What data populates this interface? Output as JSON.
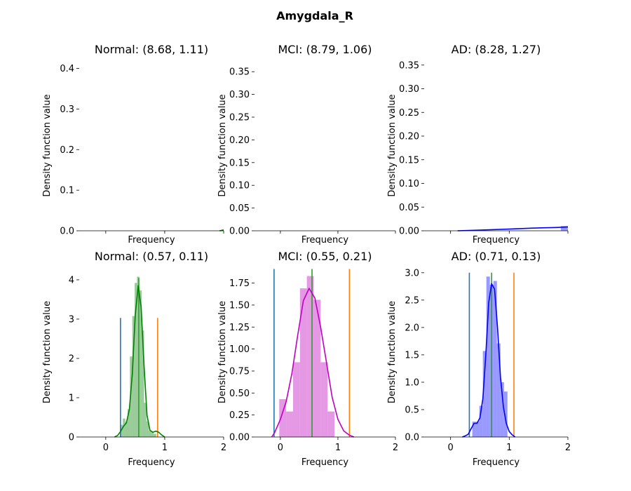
{
  "figure": {
    "title": "Amygdala_R"
  },
  "chart_data": [
    {
      "type": "bar",
      "title": "Normal: (8.68, 1.11)",
      "xlabel": "Frequency",
      "ylabel": "Density function value",
      "xlim": [
        -0.45,
        2.0
      ],
      "ylim": [
        0,
        0.42
      ],
      "xticks": [],
      "yticks": [
        0.0,
        0.1,
        0.2,
        0.3,
        0.4
      ],
      "ytick_labels": [
        "0.0",
        "0.1",
        "0.2",
        "0.3",
        "0.4"
      ],
      "color": "#008000",
      "hist": [
        {
          "x0": 1.96,
          "x1": 2.0,
          "h": 0.003
        }
      ],
      "kde": [
        [
          1.93,
          0.0
        ],
        [
          1.97,
          0.001
        ],
        [
          2.0,
          0.002
        ]
      ],
      "vlines": []
    },
    {
      "type": "bar",
      "title": "MCI: (8.79, 1.06)",
      "xlabel": "Frequency",
      "ylabel": "Density function value",
      "xlim": [
        -0.45,
        2.0
      ],
      "ylim": [
        0,
        0.375
      ],
      "xticks": [],
      "yticks": [
        0.0,
        0.05,
        0.1,
        0.15,
        0.2,
        0.25,
        0.3,
        0.35
      ],
      "ytick_labels": [
        "0.00",
        "0.05",
        "0.10",
        "0.15",
        "0.20",
        "0.25",
        "0.30",
        "0.35"
      ],
      "color": "#bf00bf",
      "hist": [],
      "kde": [],
      "vlines": []
    },
    {
      "type": "bar",
      "title": "AD: (8.28, 1.27)",
      "xlabel": "Frequency",
      "ylabel": "Density function value",
      "xlim": [
        -0.45,
        2.0
      ],
      "ylim": [
        0,
        0.36
      ],
      "xticks": [],
      "yticks": [
        0.0,
        0.05,
        0.1,
        0.15,
        0.2,
        0.25,
        0.3,
        0.35
      ],
      "ytick_labels": [
        "0.00",
        "0.05",
        "0.10",
        "0.15",
        "0.20",
        "0.25",
        "0.30",
        "0.35"
      ],
      "color": "#0000ff",
      "hist": [
        {
          "x0": 1.88,
          "x1": 2.0,
          "h": 0.01
        }
      ],
      "kde": [
        [
          0.12,
          0.0
        ],
        [
          0.5,
          0.0015
        ],
        [
          1.0,
          0.0035
        ],
        [
          1.5,
          0.006
        ],
        [
          1.8,
          0.007
        ],
        [
          2.0,
          0.008
        ]
      ],
      "vlines": []
    },
    {
      "type": "bar",
      "title": "Normal: (0.57, 0.11)",
      "xlabel": "Frequency",
      "ylabel": "Density function value",
      "xlim": [
        -0.45,
        2.0
      ],
      "ylim": [
        0,
        4.32
      ],
      "xticks": [
        0,
        1,
        2
      ],
      "xtick_labels": [
        "0",
        "1",
        "2"
      ],
      "yticks": [
        0,
        1,
        2,
        3,
        4
      ],
      "ytick_labels": [
        "0",
        "1",
        "2",
        "3",
        "4"
      ],
      "color": "#008000",
      "hist": [
        {
          "x0": 0.25,
          "x1": 0.29,
          "h": 0.31
        },
        {
          "x0": 0.29,
          "x1": 0.33,
          "h": 0.47
        },
        {
          "x0": 0.33,
          "x1": 0.37,
          "h": 0.39
        },
        {
          "x0": 0.37,
          "x1": 0.41,
          "h": 0.71
        },
        {
          "x0": 0.41,
          "x1": 0.45,
          "h": 2.05
        },
        {
          "x0": 0.45,
          "x1": 0.49,
          "h": 3.08
        },
        {
          "x0": 0.49,
          "x1": 0.53,
          "h": 3.92
        },
        {
          "x0": 0.53,
          "x1": 0.57,
          "h": 4.08
        },
        {
          "x0": 0.57,
          "x1": 0.61,
          "h": 3.73
        },
        {
          "x0": 0.61,
          "x1": 0.65,
          "h": 2.71
        },
        {
          "x0": 0.65,
          "x1": 0.69,
          "h": 0.87
        },
        {
          "x0": 0.69,
          "x1": 0.73,
          "h": 0.4
        },
        {
          "x0": 0.73,
          "x1": 0.77,
          "h": 0.16
        },
        {
          "x0": 0.77,
          "x1": 0.81,
          "h": 0.12
        },
        {
          "x0": 0.81,
          "x1": 0.86,
          "h": 0.08
        }
      ],
      "kde": [
        [
          0.15,
          0.0
        ],
        [
          0.2,
          0.04
        ],
        [
          0.25,
          0.14
        ],
        [
          0.3,
          0.27
        ],
        [
          0.35,
          0.36
        ],
        [
          0.4,
          0.7
        ],
        [
          0.45,
          1.6
        ],
        [
          0.5,
          3.1
        ],
        [
          0.55,
          3.85
        ],
        [
          0.6,
          3.3
        ],
        [
          0.65,
          1.8
        ],
        [
          0.7,
          0.55
        ],
        [
          0.75,
          0.17
        ],
        [
          0.8,
          0.12
        ],
        [
          0.85,
          0.15
        ],
        [
          0.9,
          0.12
        ],
        [
          0.95,
          0.05
        ],
        [
          1.0,
          0.0
        ]
      ],
      "vlines": [
        {
          "x": 0.25,
          "ymax": 3.03,
          "color": "#1f77b4"
        },
        {
          "x": 0.56,
          "ymax": 4.05,
          "color": "#2ca02c"
        },
        {
          "x": 0.88,
          "ymax": 3.03,
          "color": "#ff7f0e"
        }
      ]
    },
    {
      "type": "bar",
      "title": "MCI: (0.55, 0.21)",
      "xlabel": "Frequency",
      "ylabel": "Density function value",
      "xlim": [
        -0.45,
        2.0
      ],
      "ylim": [
        0,
        1.93
      ],
      "xticks": [
        0,
        1,
        2
      ],
      "xtick_labels": [
        "0",
        "1",
        "2"
      ],
      "yticks": [
        0.0,
        0.25,
        0.5,
        0.75,
        1.0,
        1.25,
        1.5,
        1.75
      ],
      "ytick_labels": [
        "0.00",
        "0.25",
        "0.50",
        "0.75",
        "1.00",
        "1.25",
        "1.50",
        "1.75"
      ],
      "color": "#bf00bf",
      "hist": [
        {
          "x0": -0.02,
          "x1": 0.1,
          "h": 0.43
        },
        {
          "x0": 0.1,
          "x1": 0.22,
          "h": 0.29
        },
        {
          "x0": 0.22,
          "x1": 0.34,
          "h": 0.85
        },
        {
          "x0": 0.34,
          "x1": 0.46,
          "h": 1.69
        },
        {
          "x0": 0.46,
          "x1": 0.58,
          "h": 1.83
        },
        {
          "x0": 0.58,
          "x1": 0.7,
          "h": 1.56
        },
        {
          "x0": 0.7,
          "x1": 0.82,
          "h": 0.85
        },
        {
          "x0": 0.82,
          "x1": 0.94,
          "h": 0.29
        }
      ],
      "kde": [
        [
          -0.15,
          0.0
        ],
        [
          -0.1,
          0.05
        ],
        [
          0.0,
          0.2
        ],
        [
          0.1,
          0.4
        ],
        [
          0.2,
          0.72
        ],
        [
          0.3,
          1.15
        ],
        [
          0.4,
          1.55
        ],
        [
          0.5,
          1.69
        ],
        [
          0.6,
          1.58
        ],
        [
          0.7,
          1.25
        ],
        [
          0.8,
          0.85
        ],
        [
          0.9,
          0.45
        ],
        [
          1.0,
          0.2
        ],
        [
          1.1,
          0.07
        ],
        [
          1.2,
          0.02
        ],
        [
          1.28,
          0.0
        ]
      ],
      "vlines": [
        {
          "x": -0.11,
          "ymax": 1.91,
          "color": "#1f77b4"
        },
        {
          "x": 0.55,
          "ymax": 1.91,
          "color": "#2ca02c"
        },
        {
          "x": 1.2,
          "ymax": 1.91,
          "color": "#ff7f0e"
        }
      ]
    },
    {
      "type": "bar",
      "title": "AD: (0.71, 0.13)",
      "xlabel": "Frequency",
      "ylabel": "Density function value",
      "xlim": [
        -0.45,
        2.0
      ],
      "ylim": [
        0,
        3.1
      ],
      "xticks": [
        0,
        1,
        2
      ],
      "xtick_labels": [
        "0",
        "1",
        "2"
      ],
      "yticks": [
        0.0,
        0.5,
        1.0,
        1.5,
        2.0,
        2.5,
        3.0
      ],
      "ytick_labels": [
        "0.0",
        "0.5",
        "1.0",
        "1.5",
        "2.0",
        "2.5",
        "3.0"
      ],
      "color": "#0000ff",
      "hist": [
        {
          "x0": 0.37,
          "x1": 0.43,
          "h": 0.28
        },
        {
          "x0": 0.43,
          "x1": 0.49,
          "h": 0.28
        },
        {
          "x0": 0.49,
          "x1": 0.55,
          "h": 0.57
        },
        {
          "x0": 0.55,
          "x1": 0.61,
          "h": 1.57
        },
        {
          "x0": 0.61,
          "x1": 0.67,
          "h": 2.93
        },
        {
          "x0": 0.67,
          "x1": 0.73,
          "h": 2.78
        },
        {
          "x0": 0.73,
          "x1": 0.79,
          "h": 2.85
        },
        {
          "x0": 0.79,
          "x1": 0.85,
          "h": 1.71
        },
        {
          "x0": 0.85,
          "x1": 0.91,
          "h": 1.0
        },
        {
          "x0": 0.91,
          "x1": 0.97,
          "h": 0.83
        }
      ],
      "kde": [
        [
          0.2,
          0.0
        ],
        [
          0.25,
          0.02
        ],
        [
          0.3,
          0.05
        ],
        [
          0.35,
          0.15
        ],
        [
          0.4,
          0.25
        ],
        [
          0.45,
          0.25
        ],
        [
          0.5,
          0.35
        ],
        [
          0.55,
          0.7
        ],
        [
          0.6,
          1.5
        ],
        [
          0.65,
          2.45
        ],
        [
          0.7,
          2.8
        ],
        [
          0.75,
          2.7
        ],
        [
          0.8,
          2.0
        ],
        [
          0.85,
          1.1
        ],
        [
          0.9,
          0.55
        ],
        [
          0.95,
          0.25
        ],
        [
          1.0,
          0.1
        ],
        [
          1.05,
          0.04
        ],
        [
          1.1,
          0.0
        ]
      ],
      "vlines": [
        {
          "x": 0.32,
          "ymax": 3.0,
          "color": "#1f77b4"
        },
        {
          "x": 0.7,
          "ymax": 3.0,
          "color": "#2ca02c"
        },
        {
          "x": 1.08,
          "ymax": 3.0,
          "color": "#ff7f0e"
        }
      ]
    }
  ]
}
